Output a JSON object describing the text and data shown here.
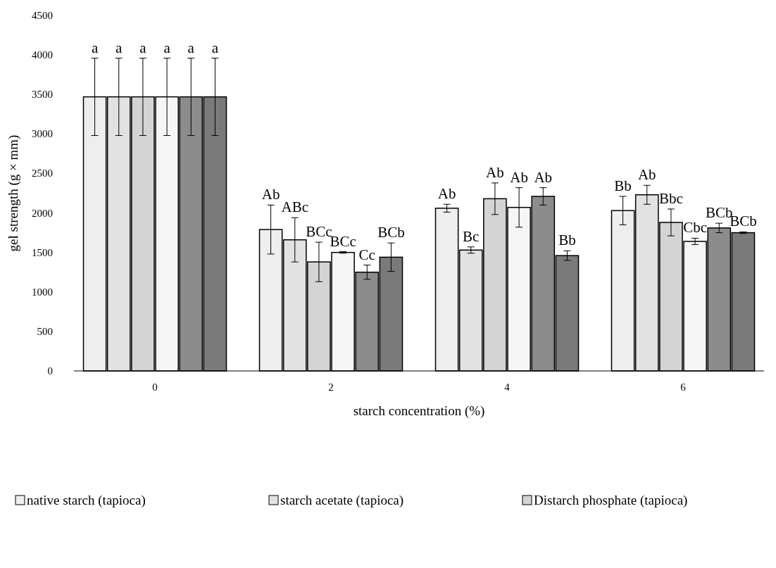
{
  "chart_data": {
    "type": "bar",
    "xlabel": "starch concentration (%)",
    "ylabel": "gel strength (g × mm)",
    "categories": [
      "0",
      "2",
      "4",
      "6"
    ],
    "ylim": [
      0,
      4500
    ],
    "yticks": [
      0,
      500,
      1000,
      1500,
      2000,
      2500,
      3000,
      3500,
      4000,
      4500
    ],
    "grid": false,
    "legend": "bottom",
    "series": [
      {
        "name": "native starch (tapioca)",
        "color": "#eeeeee",
        "values": [
          3470,
          1790,
          2060,
          2030
        ],
        "errors": [
          490,
          310,
          50,
          180
        ],
        "value_labels": [
          "a",
          "Ab",
          "Ab",
          "Bb"
        ]
      },
      {
        "name": "starch acetate (tapioca)",
        "color": "#e2e2e2",
        "values": [
          3470,
          1660,
          1530,
          2230
        ],
        "errors": [
          490,
          280,
          40,
          120
        ],
        "value_labels": [
          "a",
          "ABc",
          "Bc",
          "Ab"
        ]
      },
      {
        "name": "Distarch phosphate (tapioca)",
        "color": "#d4d4d4",
        "values": [
          3470,
          1380,
          2180,
          1880
        ],
        "errors": [
          490,
          250,
          200,
          170
        ],
        "value_labels": [
          "a",
          "BCc",
          "Ab",
          "Bbc"
        ]
      },
      {
        "color": "#f6f6f6",
        "values": [
          3470,
          1500,
          2070,
          1640
        ],
        "errors": [
          490,
          10,
          250,
          40
        ],
        "value_labels": [
          "a",
          "BCc",
          "Ab",
          "Cbc"
        ]
      },
      {
        "color": "#8c8c8c",
        "values": [
          3470,
          1250,
          2210,
          1810
        ],
        "errors": [
          490,
          90,
          110,
          60
        ],
        "value_labels": [
          "a",
          "Cc",
          "Ab",
          "BCb"
        ]
      },
      {
        "color": "#7a7a7a",
        "values": [
          3470,
          1440,
          1460,
          1750
        ],
        "errors": [
          490,
          180,
          60,
          10
        ],
        "value_labels": [
          "a",
          "BCb",
          "Bb",
          "BCb"
        ]
      }
    ]
  }
}
